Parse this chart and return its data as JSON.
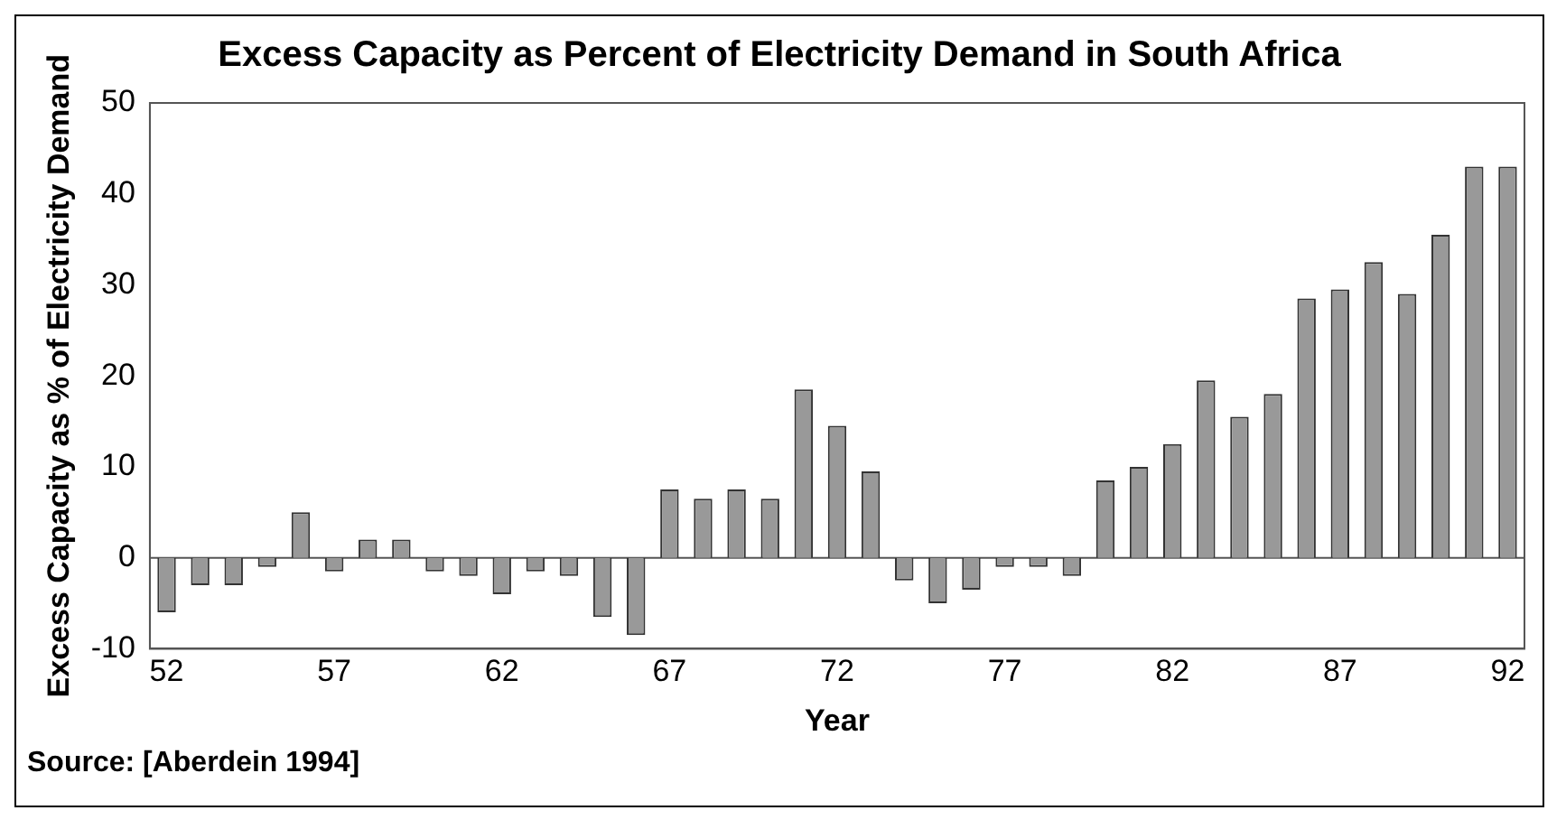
{
  "chart_data": {
    "type": "bar",
    "title": "Excess Capacity as Percent of Electricity Demand in South Africa",
    "xlabel": "Year",
    "ylabel": "Excess Capacity as % of Electricity Demand",
    "categories": [
      "52",
      null,
      null,
      null,
      null,
      "57",
      null,
      null,
      null,
      null,
      "62",
      null,
      null,
      null,
      null,
      "67",
      null,
      null,
      null,
      null,
      "72",
      null,
      null,
      null,
      null,
      "77",
      null,
      null,
      null,
      null,
      "82",
      null,
      null,
      null,
      null,
      "87",
      null,
      null,
      null,
      null,
      "92"
    ],
    "values": [
      -6,
      -3,
      -3,
      -1,
      5,
      -1.5,
      2,
      2,
      -1.5,
      -2,
      -4,
      -1.5,
      -2,
      -6.5,
      -8.5,
      7.5,
      6.5,
      7.5,
      6.5,
      18.5,
      14.5,
      9.5,
      -2.5,
      -5,
      -3.5,
      -1,
      -1,
      -2,
      8.5,
      10,
      12.5,
      19.5,
      15.5,
      18,
      28.5,
      29.5,
      32.5,
      29,
      35.5,
      43,
      43
    ],
    "color": "#999999",
    "ylim": [
      -10,
      50
    ],
    "yticks": [
      -10,
      0,
      10,
      20,
      30,
      40,
      50
    ],
    "grid": false,
    "ref_lines": [
      {
        "axis": "y",
        "value": 0,
        "color": "#555555"
      }
    ],
    "legend": false,
    "annotations": [
      "Source: [Aberdein 1994]"
    ]
  }
}
